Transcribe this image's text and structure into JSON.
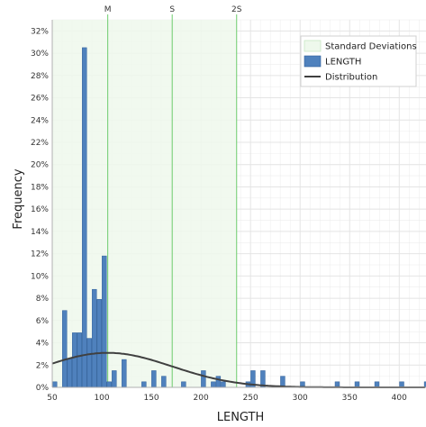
{
  "chart_data": {
    "type": "bar",
    "title": "",
    "xlabel": "LENGTH",
    "ylabel": "Frequency",
    "xlim": [
      50,
      427
    ],
    "ylim": [
      0,
      33
    ],
    "x_ticks": [
      50,
      100,
      150,
      200,
      250,
      300,
      350,
      400
    ],
    "y_ticks": [
      0,
      2,
      4,
      6,
      8,
      10,
      12,
      14,
      16,
      18,
      20,
      22,
      24,
      26,
      28,
      30,
      32
    ],
    "y_tick_suffix": "%",
    "grid": true,
    "legend_position": "top-right",
    "standard_deviations": {
      "markers": [
        {
          "label": "M",
          "x": 106
        },
        {
          "label": "S",
          "x": 171
        },
        {
          "label": "2S",
          "x": 236
        }
      ],
      "shaded_range": [
        50,
        236
      ]
    },
    "series": [
      {
        "name": "LENGTH",
        "kind": "histogram",
        "bin_width": 5,
        "bins": [
          {
            "x": 52.5,
            "y": 0.5
          },
          {
            "x": 62.5,
            "y": 6.9
          },
          {
            "x": 67.5,
            "y": 2.6
          },
          {
            "x": 72.5,
            "y": 4.9
          },
          {
            "x": 77.5,
            "y": 4.9
          },
          {
            "x": 82.5,
            "y": 30.5
          },
          {
            "x": 87.5,
            "y": 4.4
          },
          {
            "x": 92.5,
            "y": 8.8
          },
          {
            "x": 97.5,
            "y": 7.9
          },
          {
            "x": 102.5,
            "y": 11.8
          },
          {
            "x": 107.5,
            "y": 0.5
          },
          {
            "x": 112.5,
            "y": 1.5
          },
          {
            "x": 122.5,
            "y": 2.5
          },
          {
            "x": 142.5,
            "y": 0.5
          },
          {
            "x": 152.5,
            "y": 1.5
          },
          {
            "x": 162.5,
            "y": 1.0
          },
          {
            "x": 182.5,
            "y": 0.5
          },
          {
            "x": 202.5,
            "y": 1.5
          },
          {
            "x": 212.5,
            "y": 0.5
          },
          {
            "x": 217.5,
            "y": 1.0
          },
          {
            "x": 222.5,
            "y": 0.5
          },
          {
            "x": 247.5,
            "y": 0.5
          },
          {
            "x": 252.5,
            "y": 1.5
          },
          {
            "x": 262.5,
            "y": 1.5
          },
          {
            "x": 282.5,
            "y": 1.0
          },
          {
            "x": 302.5,
            "y": 0.5
          },
          {
            "x": 337.5,
            "y": 0.5
          },
          {
            "x": 357.5,
            "y": 0.5
          },
          {
            "x": 377.5,
            "y": 0.5
          },
          {
            "x": 402.5,
            "y": 0.5
          },
          {
            "x": 427.5,
            "y": 0.5
          }
        ]
      },
      {
        "name": "Distribution",
        "kind": "normal-curve",
        "mean": 106,
        "sd": 65,
        "peak": 3.1
      }
    ],
    "legend": [
      {
        "label": "Standard Deviations",
        "kind": "area"
      },
      {
        "label": "LENGTH",
        "kind": "bar"
      },
      {
        "label": "Distribution",
        "kind": "line"
      }
    ],
    "colors": {
      "bar_fill": "#4f81bd",
      "bar_stroke": "#2f5f99",
      "sd_fill": "#eef8ec",
      "sd_line": "#6dcc6d",
      "curve": "#404040",
      "grid": "#e4e4e4",
      "axis": "#b0b0b0"
    }
  }
}
